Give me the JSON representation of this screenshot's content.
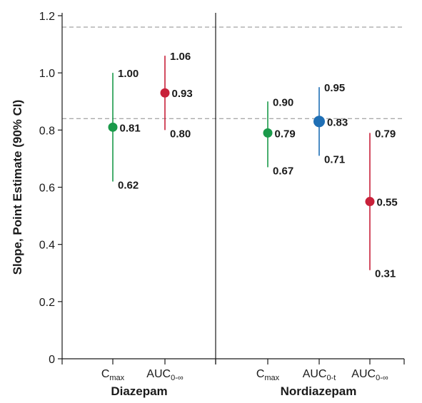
{
  "chart_data": {
    "type": "scatter",
    "ylabel": "Slope, Point Estimate (90% CI)",
    "ylim": [
      0,
      1.2
    ],
    "yticks": [
      "0",
      "0.2",
      "0.4",
      "0.6",
      "0.8",
      "1.0",
      "1.2"
    ],
    "reference_lines": [
      1.16,
      0.84
    ],
    "groups": [
      {
        "name": "Diazepam",
        "series": [
          {
            "name": "C",
            "sub": "max",
            "point": 0.81,
            "lower": 0.62,
            "upper": 1.0,
            "point_label": "0.81",
            "lower_label": "0.62",
            "upper_label": "1.00",
            "color": "#1a9a4a"
          },
          {
            "name": "AUC",
            "sub": "0-∞",
            "point": 0.93,
            "lower": 0.8,
            "upper": 1.06,
            "point_label": "0.93",
            "lower_label": "0.80",
            "upper_label": "1.06",
            "color": "#c8213a"
          }
        ]
      },
      {
        "name": "Nordiazepam",
        "series": [
          {
            "name": "C",
            "sub": "max",
            "point": 0.79,
            "lower": 0.67,
            "upper": 0.9,
            "point_label": "0.79",
            "lower_label": "0.67",
            "upper_label": "0.90",
            "color": "#1a9a4a"
          },
          {
            "name": "AUC",
            "sub": "0-t",
            "point": 0.83,
            "lower": 0.71,
            "upper": 0.95,
            "point_label": "0.83",
            "lower_label": "0.71",
            "upper_label": "0.95",
            "color": "#1f6fb5"
          },
          {
            "name": "AUC",
            "sub": "0-∞",
            "point": 0.55,
            "lower": 0.31,
            "upper": 0.79,
            "point_label": "0.55",
            "lower_label": "0.31",
            "upper_label": "0.79",
            "color": "#c8213a"
          }
        ]
      }
    ]
  }
}
